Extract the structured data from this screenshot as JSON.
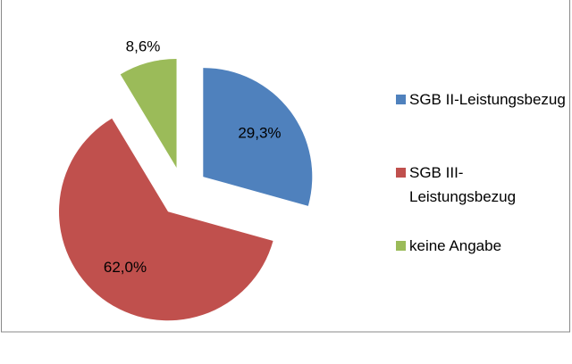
{
  "chart_data": {
    "type": "pie",
    "categories": [
      "SGB II-Leistungsbezug",
      "SGB III-Leistungsbezug",
      "keine Angabe"
    ],
    "values": [
      29.3,
      62.0,
      8.6
    ],
    "value_labels": [
      "29,3%",
      "62,0%",
      "8,6%"
    ],
    "colors": [
      "#4f81bd",
      "#c0504d",
      "#9bbb59"
    ],
    "exploded": true,
    "legend": "right"
  }
}
